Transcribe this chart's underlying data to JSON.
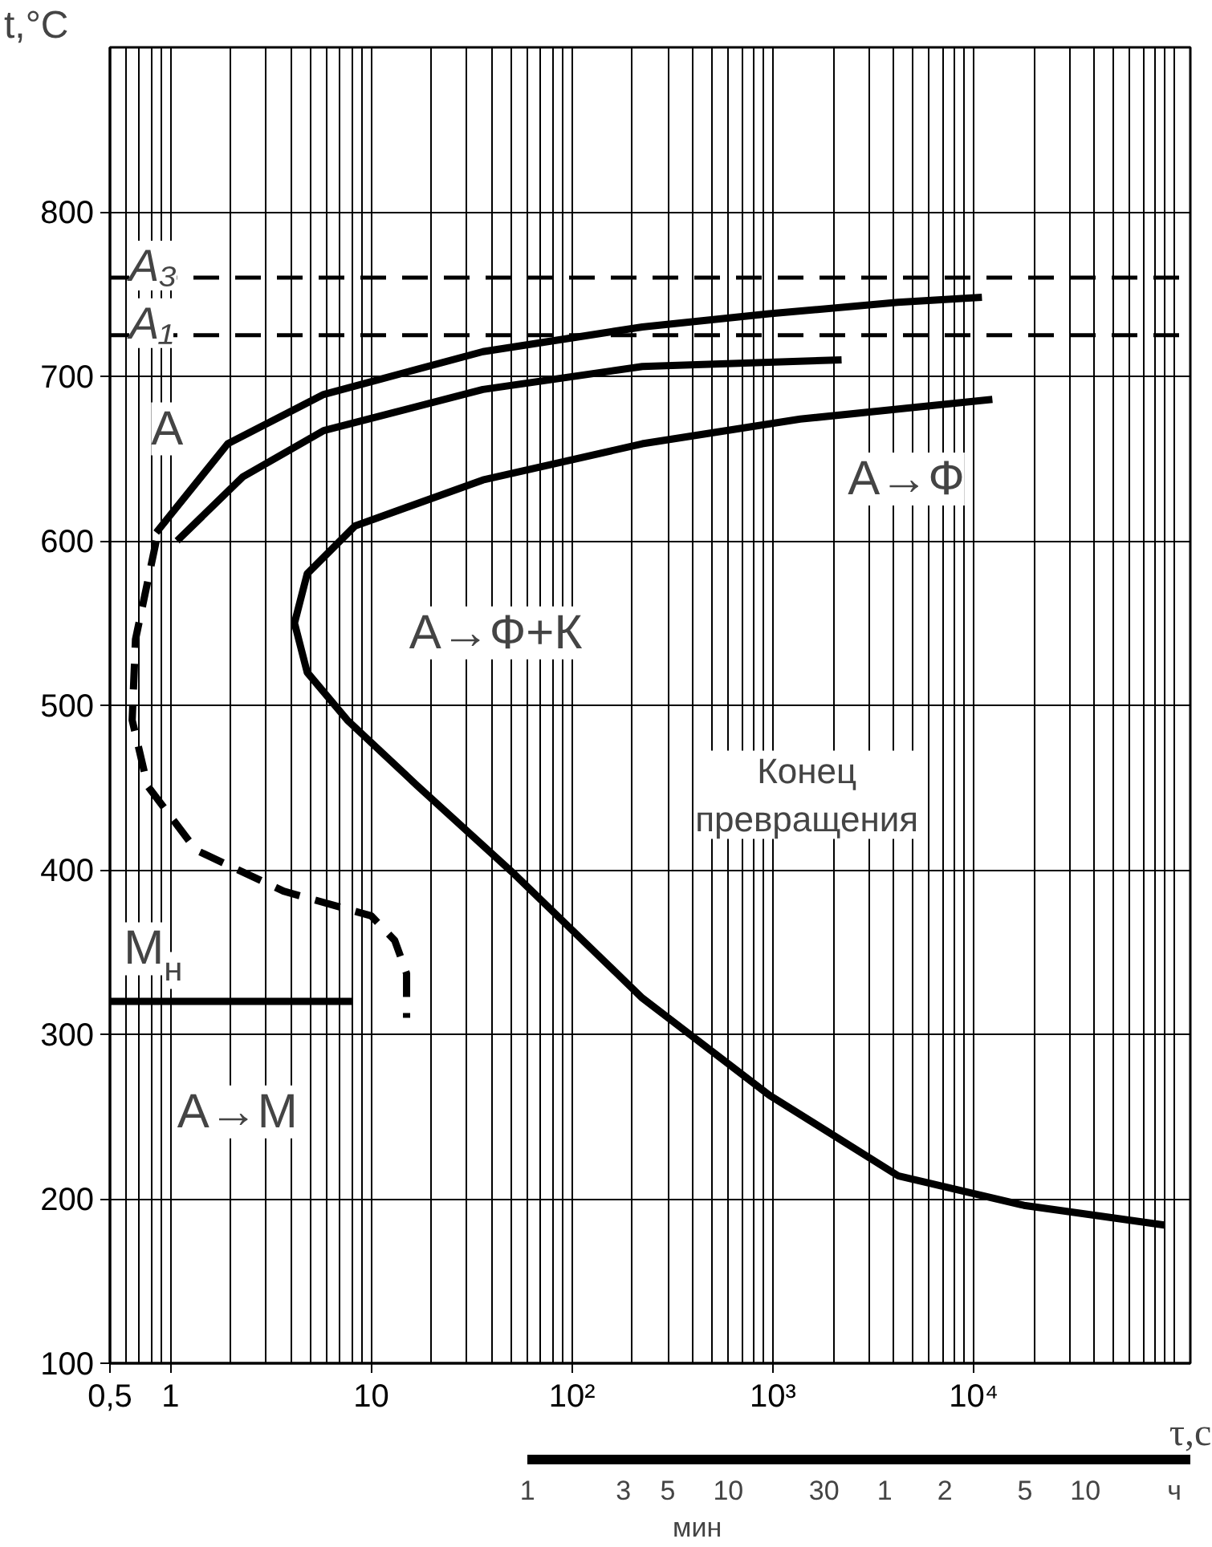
{
  "chart_data": {
    "type": "line",
    "xlabel": "τ,с",
    "ylabel": "t,°C",
    "log": "x",
    "grid": true,
    "marker": "none",
    "xlim": [
      0.5,
      120000
    ],
    "ylim": [
      100,
      900
    ],
    "xticks": [
      {
        "value": 0.5,
        "label": "0,5"
      },
      1,
      10,
      {
        "value": 100,
        "label": "10²"
      },
      {
        "value": 1000,
        "label": "10³"
      },
      {
        "value": 10000,
        "label": "10⁴"
      }
    ],
    "yticks": [
      100,
      200,
      300,
      400,
      500,
      600,
      700,
      800
    ],
    "series": [
      {
        "color": "#000000",
        "line_style": "solid",
        "x": [
          0.85,
          1.93,
          5.8,
          36,
          224,
          960,
          4200,
          11000
        ],
        "values": [
          605,
          659,
          689,
          715,
          730,
          738,
          745,
          748
        ]
      },
      {
        "color": "#000000",
        "line_style": "dashed",
        "x": [
          0.85,
          0.67,
          0.645,
          0.77,
          1.34,
          3.66,
          10,
          13.1,
          15,
          15
        ],
        "values": [
          600,
          540,
          491,
          451,
          412,
          387,
          372,
          357,
          337,
          310
        ]
      },
      {
        "color": "#000000",
        "line_style": "solid",
        "x": [
          1.08,
          2.3,
          5.8,
          36,
          224,
          2200
        ],
        "values": [
          600,
          639,
          667,
          692,
          706,
          710
        ]
      },
      {
        "color": "#000000",
        "line_style": "solid",
        "x": [
          12400,
          1370,
          224,
          36,
          8.3,
          4.8,
          4.15,
          4.8,
          7.6,
          17,
          52,
          224,
          960,
          4200,
          17800,
          89000
        ],
        "values": [
          686,
          674,
          659,
          637,
          609,
          580,
          550,
          520,
          491,
          451,
          397,
          322,
          263,
          214,
          196,
          184
        ]
      },
      {
        "color": "#000000",
        "line_style": "solid",
        "x": [
          0.5,
          8
        ],
        "values": [
          320,
          320
        ]
      }
    ],
    "ref_lines": [
      {
        "axis": "y",
        "value": 760,
        "label": "A₃",
        "color": "#000000",
        "line_style": "dashed"
      },
      {
        "axis": "y",
        "value": 725,
        "label": "A₁",
        "color": "#000000",
        "line_style": "dashed"
      }
    ],
    "annotations": [
      "A",
      "A→Ф",
      "A→Ф+К",
      "Конец\nпревращения",
      "M$_{н}$",
      "A→M",
      "1",
      "3",
      "5",
      "10",
      "30",
      "мин",
      "1",
      "2",
      "5",
      "10",
      "ч"
    ]
  }
}
